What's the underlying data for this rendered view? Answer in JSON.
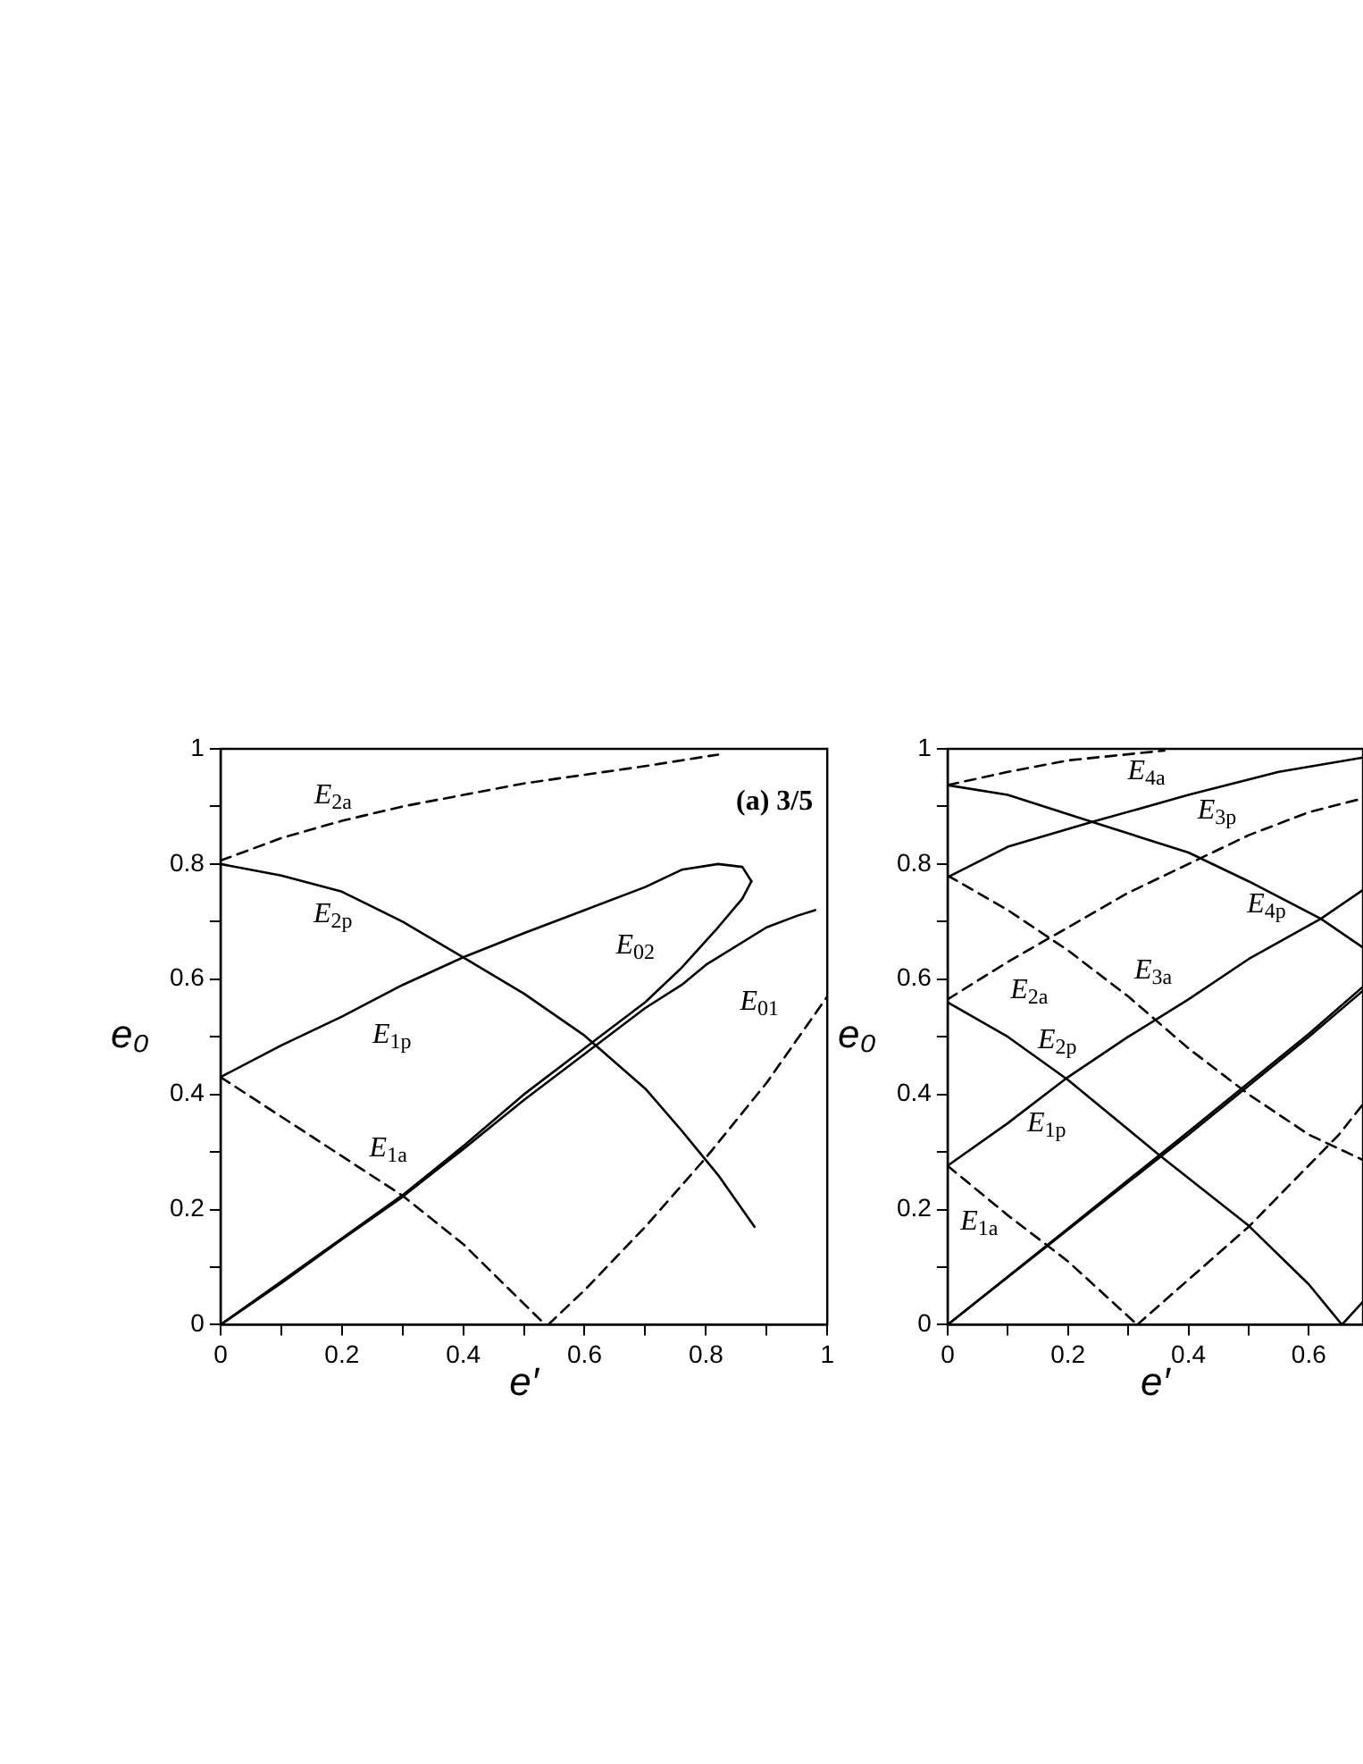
{
  "chart_data": [
    {
      "type": "line",
      "xlabel": "e′",
      "ylabel": "e₀",
      "marker": "none",
      "xlim": [
        0,
        1
      ],
      "ylim": [
        0,
        1
      ],
      "xticks": [
        0,
        {
          "value": 0.1,
          "label": null
        },
        0.2,
        {
          "value": 0.3,
          "label": null
        },
        0.4,
        {
          "value": 0.5,
          "label": null
        },
        0.6,
        {
          "value": 0.7,
          "label": null
        },
        0.8,
        {
          "value": 0.9,
          "label": null
        },
        1
      ],
      "yticks": [
        0,
        {
          "value": 0.1,
          "label": null
        },
        0.2,
        {
          "value": 0.3,
          "label": null
        },
        0.4,
        {
          "value": 0.5,
          "label": null
        },
        0.6,
        {
          "value": 0.7,
          "label": null
        },
        0.8,
        {
          "value": 0.9,
          "label": null
        },
        1
      ],
      "series": [
        {
          "name": "E$_{2a}$",
          "color": "#000000",
          "line_style": "dashed",
          "x": [
            0,
            0.1,
            0.2,
            0.3,
            0.4,
            0.5,
            0.6,
            0.7,
            0.82
          ],
          "values": [
            0.806,
            0.845,
            0.875,
            0.9,
            0.92,
            0.94,
            0.955,
            0.97,
            0.99
          ]
        },
        {
          "name": "E$_{2p}$",
          "color": "#000000",
          "line_style": "solid",
          "x": [
            0,
            0.1,
            0.2,
            0.3,
            0.4,
            0.5,
            0.6,
            0.7,
            0.76,
            0.82,
            0.88
          ],
          "values": [
            0.8,
            0.78,
            0.752,
            0.7,
            0.638,
            0.575,
            0.502,
            0.41,
            0.337,
            0.26,
            0.17
          ]
        },
        {
          "name": "E$_{1p}$",
          "color": "#000000",
          "line_style": "solid",
          "x": [
            0,
            0.1,
            0.2,
            0.3,
            0.4,
            0.5,
            0.6,
            0.7,
            0.76,
            0.82,
            0.86,
            0.875
          ],
          "values": [
            0.43,
            0.485,
            0.535,
            0.59,
            0.638,
            0.68,
            0.72,
            0.76,
            0.79,
            0.8,
            0.795,
            0.77
          ]
        },
        {
          "name": "E$_{02}$",
          "color": "#000000",
          "line_style": "solid",
          "x": [
            0,
            0.1,
            0.2,
            0.3,
            0.4,
            0.5,
            0.6,
            0.7,
            0.76,
            0.82,
            0.86,
            0.875
          ],
          "values": [
            0,
            0.075,
            0.15,
            0.225,
            0.31,
            0.4,
            0.48,
            0.56,
            0.62,
            0.69,
            0.74,
            0.77
          ]
        },
        {
          "name": "E$_{01}$",
          "color": "#000000",
          "line_style": "solid",
          "x": [
            0,
            0.1,
            0.2,
            0.3,
            0.4,
            0.5,
            0.6,
            0.7,
            0.76,
            0.8,
            0.9,
            0.95,
            0.98
          ],
          "values": [
            0,
            0.072,
            0.148,
            0.222,
            0.305,
            0.39,
            0.47,
            0.55,
            0.59,
            0.625,
            0.69,
            0.71,
            0.72
          ]
        },
        {
          "name": "E$_{1a}$",
          "color": "#000000",
          "line_style": "dashed",
          "x": [
            0,
            0.15,
            0.3,
            0.4,
            0.535
          ],
          "values": [
            0.43,
            0.327,
            0.224,
            0.14,
            0
          ]
        },
        {
          "color": "#000000",
          "line_style": "dashed",
          "x": [
            0.54,
            0.6,
            0.7,
            0.8,
            0.9,
            1
          ],
          "values": [
            0,
            0.06,
            0.17,
            0.29,
            0.42,
            0.57
          ]
        }
      ],
      "annotations": [
        "(a) 3/5"
      ]
    },
    {
      "type": "line",
      "xlabel": "e′",
      "ylabel": "e₀",
      "marker": "none",
      "xlim": [
        0,
        0.69
      ],
      "ylim": [
        0,
        1
      ],
      "xticks": [
        0,
        {
          "value": 0.1,
          "label": null
        },
        0.2,
        {
          "value": 0.3,
          "label": null
        },
        0.4,
        {
          "value": 0.5,
          "label": null
        },
        0.6
      ],
      "yticks": [
        0,
        {
          "value": 0.1,
          "label": null
        },
        0.2,
        {
          "value": 0.3,
          "label": null
        },
        0.4,
        {
          "value": 0.5,
          "label": null
        },
        0.6,
        {
          "value": 0.7,
          "label": null
        },
        0.8,
        {
          "value": 0.9,
          "label": null
        },
        1
      ],
      "series": [
        {
          "name": "E$_{4a}$",
          "color": "#000000",
          "line_style": "dashed",
          "x": [
            0,
            0.1,
            0.2,
            0.36
          ],
          "values": [
            0.937,
            0.96,
            0.98,
            0.997
          ]
        },
        {
          "name": "E$_{3p}$",
          "color": "#000000",
          "line_style": "solid",
          "x": [
            0,
            0.1,
            0.24,
            0.4,
            0.55,
            0.69
          ],
          "values": [
            0.777,
            0.83,
            0.873,
            0.92,
            0.96,
            0.985
          ]
        },
        {
          "name": "E$_{4p}$",
          "color": "#000000",
          "line_style": "solid",
          "x": [
            0,
            0.1,
            0.24,
            0.4,
            0.5,
            0.62,
            0.69
          ],
          "values": [
            0.937,
            0.92,
            0.873,
            0.82,
            0.77,
            0.705,
            0.655
          ]
        },
        {
          "name": "E$_{2a}$",
          "color": "#000000",
          "line_style": "dashed",
          "x": [
            0,
            0.1,
            0.2,
            0.3,
            0.4,
            0.5,
            0.6,
            0.69
          ],
          "values": [
            0.565,
            0.63,
            0.69,
            0.75,
            0.8,
            0.85,
            0.89,
            0.914
          ]
        },
        {
          "name": "E$_{3a}$",
          "color": "#000000",
          "line_style": "dashed",
          "x": [
            0,
            0.1,
            0.2,
            0.3,
            0.4,
            0.5,
            0.6,
            0.69
          ],
          "values": [
            0.78,
            0.72,
            0.65,
            0.57,
            0.48,
            0.4,
            0.33,
            0.286
          ]
        },
        {
          "name": "E$_{1p}$",
          "color": "#000000",
          "line_style": "solid",
          "x": [
            0,
            0.1,
            0.2,
            0.3,
            0.4,
            0.5,
            0.62,
            0.69
          ],
          "values": [
            0.276,
            0.35,
            0.43,
            0.5,
            0.565,
            0.635,
            0.705,
            0.755
          ]
        },
        {
          "name": "E$_{2p}$",
          "color": "#000000",
          "line_style": "solid",
          "x": [
            0,
            0.1,
            0.2,
            0.35,
            0.5,
            0.6,
            0.655
          ],
          "values": [
            0.56,
            0.5,
            0.425,
            0.296,
            0.172,
            0.07,
            0
          ]
        },
        {
          "color": "#000000",
          "line_style": "solid",
          "x": [
            0.655,
            0.69
          ],
          "values": [
            0,
            0.04
          ]
        },
        {
          "color": "#000000",
          "line_style": "solid",
          "x": [
            0,
            0.2,
            0.4,
            0.6,
            0.69
          ],
          "values": [
            0,
            0.165,
            0.33,
            0.5,
            0.58
          ]
        },
        {
          "color": "#000000",
          "line_style": "solid",
          "x": [
            0,
            0.2,
            0.4,
            0.6,
            0.69
          ],
          "values": [
            0,
            0.167,
            0.335,
            0.505,
            0.587
          ]
        },
        {
          "name": "E$_{1a}$",
          "color": "#000000",
          "line_style": "dashed",
          "x": [
            0,
            0.1,
            0.2,
            0.315
          ],
          "values": [
            0.276,
            0.19,
            0.11,
            0
          ]
        },
        {
          "color": "#000000",
          "line_style": "dashed",
          "x": [
            0.315,
            0.5,
            0.65,
            0.69
          ],
          "values": [
            0,
            0.17,
            0.33,
            0.383
          ]
        }
      ]
    }
  ]
}
